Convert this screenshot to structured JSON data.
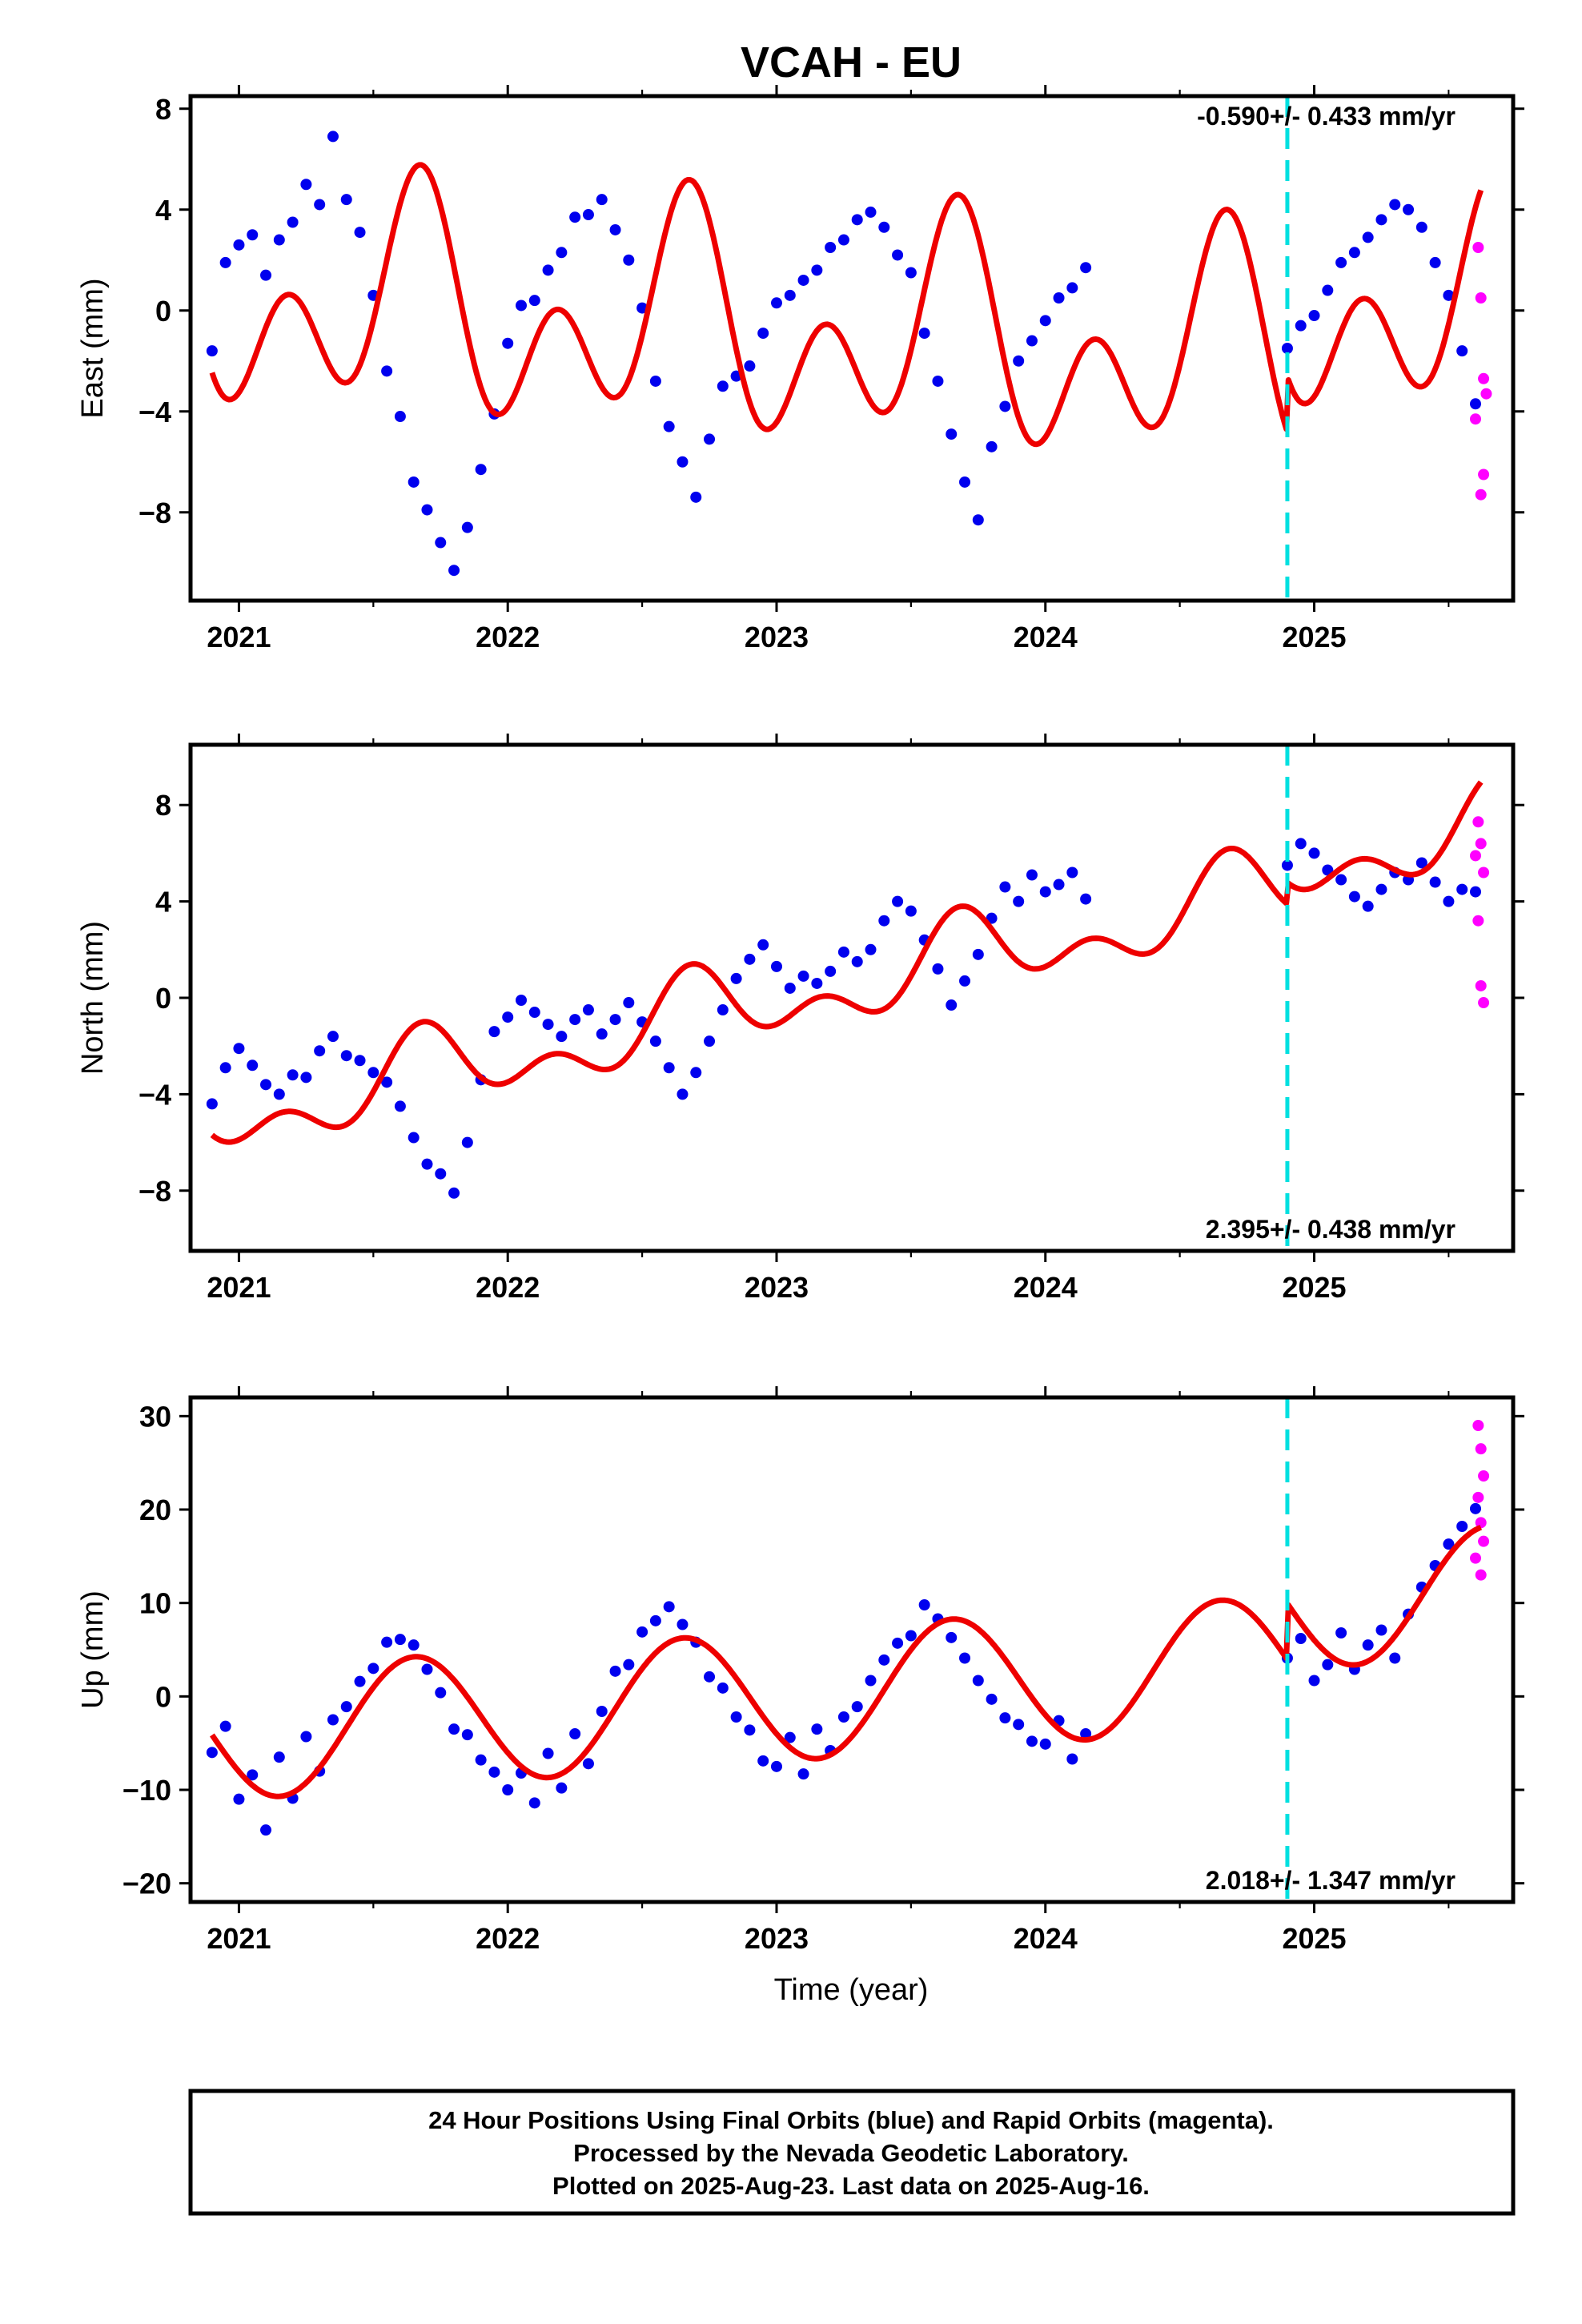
{
  "chart_data": {
    "type": "scatter",
    "title": "VCAH - EU",
    "xlabel": "Time (year)",
    "xlim": [
      2020.82,
      2025.74
    ],
    "x_ticks": [
      "2021",
      "2022",
      "2023",
      "2024",
      "2025"
    ],
    "equipment_change_epoch": 2024.9,
    "series_colors": {
      "final": "#0000ee",
      "rapid": "#ff00ff",
      "model": "#ee0000",
      "offset": "#00e0e0"
    },
    "panels": [
      {
        "id": "east",
        "ylabel": "East (mm)",
        "ylim": [
          -11.5,
          8.5
        ],
        "y_ticks": [
          "8",
          "4",
          "0",
          "−4",
          "−8"
        ],
        "rate_label": "-0.590+/- 0.433 mm/yr",
        "rate_position": "top-right",
        "model": {
          "offset": -1.0,
          "rate": -0.59,
          "sin_amp": -2.26,
          "cos_amp": -1.58,
          "sin2_amp": 2.4,
          "cos2_amp": -2.0,
          "step_at_offset": 2.2,
          "mid_epoch": 2023.25
        },
        "final_points": [
          [
            2020.9,
            -1.6
          ],
          [
            2020.95,
            1.9
          ],
          [
            2021.0,
            2.6
          ],
          [
            2021.05,
            3.0
          ],
          [
            2021.1,
            1.4
          ],
          [
            2021.15,
            2.8
          ],
          [
            2021.2,
            3.5
          ],
          [
            2021.25,
            5.0
          ],
          [
            2021.3,
            4.2
          ],
          [
            2021.35,
            6.9
          ],
          [
            2021.4,
            4.4
          ],
          [
            2021.45,
            3.1
          ],
          [
            2021.5,
            0.6
          ],
          [
            2021.55,
            -2.4
          ],
          [
            2021.6,
            -4.2
          ],
          [
            2021.65,
            -6.8
          ],
          [
            2021.7,
            -7.9
          ],
          [
            2021.75,
            -9.2
          ],
          [
            2021.8,
            -10.3
          ],
          [
            2021.85,
            -8.6
          ],
          [
            2021.9,
            -6.3
          ],
          [
            2021.95,
            -4.1
          ],
          [
            2022.0,
            -1.3
          ],
          [
            2022.05,
            0.2
          ],
          [
            2022.1,
            0.4
          ],
          [
            2022.15,
            1.6
          ],
          [
            2022.2,
            2.3
          ],
          [
            2022.25,
            3.7
          ],
          [
            2022.3,
            3.8
          ],
          [
            2022.35,
            4.4
          ],
          [
            2022.4,
            3.2
          ],
          [
            2022.45,
            2.0
          ],
          [
            2022.5,
            0.1
          ],
          [
            2022.55,
            -2.8
          ],
          [
            2022.6,
            -4.6
          ],
          [
            2022.65,
            -6.0
          ],
          [
            2022.7,
            -7.4
          ],
          [
            2022.75,
            -5.1
          ],
          [
            2022.8,
            -3.0
          ],
          [
            2022.85,
            -2.6
          ],
          [
            2022.9,
            -2.2
          ],
          [
            2022.95,
            -0.9
          ],
          [
            2023.0,
            0.3
          ],
          [
            2023.05,
            0.6
          ],
          [
            2023.1,
            1.2
          ],
          [
            2023.15,
            1.6
          ],
          [
            2023.2,
            2.5
          ],
          [
            2023.25,
            2.8
          ],
          [
            2023.3,
            3.6
          ],
          [
            2023.35,
            3.9
          ],
          [
            2023.4,
            3.3
          ],
          [
            2023.45,
            2.2
          ],
          [
            2023.5,
            1.5
          ],
          [
            2023.55,
            -0.9
          ],
          [
            2023.6,
            -2.8
          ],
          [
            2023.65,
            -4.9
          ],
          [
            2023.7,
            -6.8
          ],
          [
            2023.75,
            -8.3
          ],
          [
            2023.8,
            -5.4
          ],
          [
            2023.85,
            -3.8
          ],
          [
            2023.9,
            -2.0
          ],
          [
            2023.95,
            -1.2
          ],
          [
            2024.0,
            -0.4
          ],
          [
            2024.05,
            0.5
          ],
          [
            2024.1,
            0.9
          ],
          [
            2024.15,
            1.7
          ],
          [
            2024.9,
            -1.5
          ],
          [
            2024.95,
            -0.6
          ],
          [
            2025.0,
            -0.2
          ],
          [
            2025.05,
            0.8
          ],
          [
            2025.1,
            1.9
          ],
          [
            2025.15,
            2.3
          ],
          [
            2025.2,
            2.9
          ],
          [
            2025.25,
            3.6
          ],
          [
            2025.3,
            4.2
          ],
          [
            2025.35,
            4.0
          ],
          [
            2025.4,
            3.3
          ],
          [
            2025.45,
            1.9
          ],
          [
            2025.5,
            0.6
          ],
          [
            2025.55,
            -1.6
          ],
          [
            2025.6,
            -3.7
          ]
        ],
        "rapid_points": [
          [
            2025.61,
            2.5
          ],
          [
            2025.62,
            0.5
          ],
          [
            2025.63,
            -2.7
          ],
          [
            2025.64,
            -3.3
          ],
          [
            2025.63,
            -6.5
          ],
          [
            2025.62,
            -7.3
          ],
          [
            2025.6,
            -4.3
          ]
        ]
      },
      {
        "id": "north",
        "ylabel": "North (mm)",
        "ylim": [
          -10.5,
          10.5
        ],
        "y_ticks": [
          "8",
          "4",
          "0",
          "−4",
          "−8"
        ],
        "rate_label": "2.395+/- 0.438 mm/yr",
        "rate_position": "bottom-right",
        "model": {
          "offset": 0.5,
          "rate": 2.395,
          "sin_amp": -1.2,
          "cos_amp": -0.4,
          "sin2_amp": 0.8,
          "cos2_amp": -0.6,
          "step_at_offset": 0.9,
          "mid_epoch": 2023.25
        },
        "final_points": [
          [
            2020.9,
            -4.4
          ],
          [
            2020.95,
            -2.9
          ],
          [
            2021.0,
            -2.1
          ],
          [
            2021.05,
            -2.8
          ],
          [
            2021.1,
            -3.6
          ],
          [
            2021.15,
            -4.0
          ],
          [
            2021.2,
            -3.2
          ],
          [
            2021.25,
            -3.3
          ],
          [
            2021.3,
            -2.2
          ],
          [
            2021.35,
            -1.6
          ],
          [
            2021.4,
            -2.4
          ],
          [
            2021.45,
            -2.6
          ],
          [
            2021.5,
            -3.1
          ],
          [
            2021.55,
            -3.5
          ],
          [
            2021.6,
            -4.5
          ],
          [
            2021.65,
            -5.8
          ],
          [
            2021.7,
            -6.9
          ],
          [
            2021.75,
            -7.3
          ],
          [
            2021.8,
            -8.1
          ],
          [
            2021.85,
            -6.0
          ],
          [
            2021.9,
            -3.4
          ],
          [
            2021.95,
            -1.4
          ],
          [
            2022.0,
            -0.8
          ],
          [
            2022.05,
            -0.1
          ],
          [
            2022.1,
            -0.6
          ],
          [
            2022.15,
            -1.1
          ],
          [
            2022.2,
            -1.6
          ],
          [
            2022.25,
            -0.9
          ],
          [
            2022.3,
            -0.5
          ],
          [
            2022.35,
            -1.5
          ],
          [
            2022.4,
            -0.9
          ],
          [
            2022.45,
            -0.2
          ],
          [
            2022.5,
            -1.0
          ],
          [
            2022.55,
            -1.8
          ],
          [
            2022.6,
            -2.9
          ],
          [
            2022.65,
            -4.0
          ],
          [
            2022.7,
            -3.1
          ],
          [
            2022.75,
            -1.8
          ],
          [
            2022.8,
            -0.5
          ],
          [
            2022.85,
            0.8
          ],
          [
            2022.9,
            1.6
          ],
          [
            2022.95,
            2.2
          ],
          [
            2023.0,
            1.3
          ],
          [
            2023.05,
            0.4
          ],
          [
            2023.1,
            0.9
          ],
          [
            2023.15,
            0.6
          ],
          [
            2023.2,
            1.1
          ],
          [
            2023.25,
            1.9
          ],
          [
            2023.3,
            1.5
          ],
          [
            2023.35,
            2.0
          ],
          [
            2023.4,
            3.2
          ],
          [
            2023.45,
            4.0
          ],
          [
            2023.5,
            3.6
          ],
          [
            2023.55,
            2.4
          ],
          [
            2023.6,
            1.2
          ],
          [
            2023.65,
            -0.3
          ],
          [
            2023.7,
            0.7
          ],
          [
            2023.75,
            1.8
          ],
          [
            2023.8,
            3.3
          ],
          [
            2023.85,
            4.6
          ],
          [
            2023.9,
            4.0
          ],
          [
            2023.95,
            5.1
          ],
          [
            2024.0,
            4.4
          ],
          [
            2024.05,
            4.7
          ],
          [
            2024.1,
            5.2
          ],
          [
            2024.15,
            4.1
          ],
          [
            2024.9,
            5.5
          ],
          [
            2024.95,
            6.4
          ],
          [
            2025.0,
            6.0
          ],
          [
            2025.05,
            5.3
          ],
          [
            2025.1,
            4.9
          ],
          [
            2025.15,
            4.2
          ],
          [
            2025.2,
            3.8
          ],
          [
            2025.25,
            4.5
          ],
          [
            2025.3,
            5.2
          ],
          [
            2025.35,
            4.9
          ],
          [
            2025.4,
            5.6
          ],
          [
            2025.45,
            4.8
          ],
          [
            2025.5,
            4.0
          ],
          [
            2025.55,
            4.5
          ],
          [
            2025.6,
            4.4
          ]
        ],
        "rapid_points": [
          [
            2025.61,
            7.3
          ],
          [
            2025.62,
            6.4
          ],
          [
            2025.63,
            5.2
          ],
          [
            2025.61,
            3.2
          ],
          [
            2025.62,
            0.5
          ],
          [
            2025.63,
            -0.2
          ],
          [
            2025.6,
            5.9
          ]
        ]
      },
      {
        "id": "up",
        "ylabel": "Up (mm)",
        "ylim": [
          -22,
          32
        ],
        "y_ticks": [
          "30",
          "20",
          "10",
          "0",
          "−10",
          "−20"
        ],
        "rate_label": "2.018+/- 1.347 mm/yr",
        "rate_position": "bottom-right",
        "model": {
          "offset": 0.5,
          "rate": 2.018,
          "sin_amp": -5.7,
          "cos_amp": -4.0,
          "sin2_amp": 0.0,
          "cos2_amp": 0.0,
          "step_at_offset": 6.0,
          "mid_epoch": 2023.25
        },
        "final_points": [
          [
            2020.9,
            -6.0
          ],
          [
            2020.95,
            -3.2
          ],
          [
            2021.0,
            -11.0
          ],
          [
            2021.05,
            -8.4
          ],
          [
            2021.1,
            -14.3
          ],
          [
            2021.15,
            -6.5
          ],
          [
            2021.2,
            -10.9
          ],
          [
            2021.25,
            -4.3
          ],
          [
            2021.3,
            -8.0
          ],
          [
            2021.35,
            -2.5
          ],
          [
            2021.4,
            -1.1
          ],
          [
            2021.45,
            1.6
          ],
          [
            2021.5,
            3.0
          ],
          [
            2021.55,
            5.8
          ],
          [
            2021.6,
            6.1
          ],
          [
            2021.65,
            5.5
          ],
          [
            2021.7,
            2.9
          ],
          [
            2021.75,
            0.4
          ],
          [
            2021.8,
            -3.5
          ],
          [
            2021.85,
            -4.1
          ],
          [
            2021.9,
            -6.8
          ],
          [
            2021.95,
            -8.1
          ],
          [
            2022.0,
            -10.0
          ],
          [
            2022.05,
            -8.2
          ],
          [
            2022.1,
            -11.4
          ],
          [
            2022.15,
            -6.1
          ],
          [
            2022.2,
            -9.8
          ],
          [
            2022.25,
            -4.0
          ],
          [
            2022.3,
            -7.2
          ],
          [
            2022.35,
            -1.6
          ],
          [
            2022.4,
            2.7
          ],
          [
            2022.45,
            3.4
          ],
          [
            2022.5,
            6.9
          ],
          [
            2022.55,
            8.1
          ],
          [
            2022.6,
            9.6
          ],
          [
            2022.65,
            7.7
          ],
          [
            2022.7,
            5.8
          ],
          [
            2022.75,
            2.1
          ],
          [
            2022.8,
            0.9
          ],
          [
            2022.85,
            -2.2
          ],
          [
            2022.9,
            -3.6
          ],
          [
            2022.95,
            -6.9
          ],
          [
            2023.0,
            -7.5
          ],
          [
            2023.05,
            -4.4
          ],
          [
            2023.1,
            -8.3
          ],
          [
            2023.15,
            -3.5
          ],
          [
            2023.2,
            -5.8
          ],
          [
            2023.25,
            -2.2
          ],
          [
            2023.3,
            -1.1
          ],
          [
            2023.35,
            1.7
          ],
          [
            2023.4,
            3.9
          ],
          [
            2023.45,
            5.7
          ],
          [
            2023.5,
            6.5
          ],
          [
            2023.55,
            9.8
          ],
          [
            2023.6,
            8.3
          ],
          [
            2023.65,
            6.3
          ],
          [
            2023.7,
            4.1
          ],
          [
            2023.75,
            1.7
          ],
          [
            2023.8,
            -0.3
          ],
          [
            2023.85,
            -2.3
          ],
          [
            2023.9,
            -3.0
          ],
          [
            2023.95,
            -4.8
          ],
          [
            2024.0,
            -5.1
          ],
          [
            2024.05,
            -2.6
          ],
          [
            2024.1,
            -6.7
          ],
          [
            2024.15,
            -4.0
          ],
          [
            2024.9,
            4.1
          ],
          [
            2024.95,
            6.2
          ],
          [
            2025.0,
            1.7
          ],
          [
            2025.05,
            3.4
          ],
          [
            2025.1,
            6.8
          ],
          [
            2025.15,
            2.9
          ],
          [
            2025.2,
            5.5
          ],
          [
            2025.25,
            7.1
          ],
          [
            2025.3,
            4.1
          ],
          [
            2025.35,
            8.8
          ],
          [
            2025.4,
            11.7
          ],
          [
            2025.45,
            14.0
          ],
          [
            2025.5,
            16.3
          ],
          [
            2025.55,
            18.2
          ],
          [
            2025.6,
            20.1
          ]
        ],
        "rapid_points": [
          [
            2025.61,
            29.0
          ],
          [
            2025.62,
            26.5
          ],
          [
            2025.63,
            23.6
          ],
          [
            2025.61,
            21.3
          ],
          [
            2025.62,
            18.6
          ],
          [
            2025.63,
            16.6
          ],
          [
            2025.6,
            14.8
          ],
          [
            2025.62,
            13.0
          ]
        ]
      }
    ]
  },
  "footer": {
    "line1": "24 Hour Positions Using Final Orbits (blue) and Rapid Orbits (magenta).",
    "line2": "Processed by the Nevada Geodetic Laboratory.",
    "line3": "Plotted on 2025-Aug-23. Last data on 2025-Aug-16."
  }
}
